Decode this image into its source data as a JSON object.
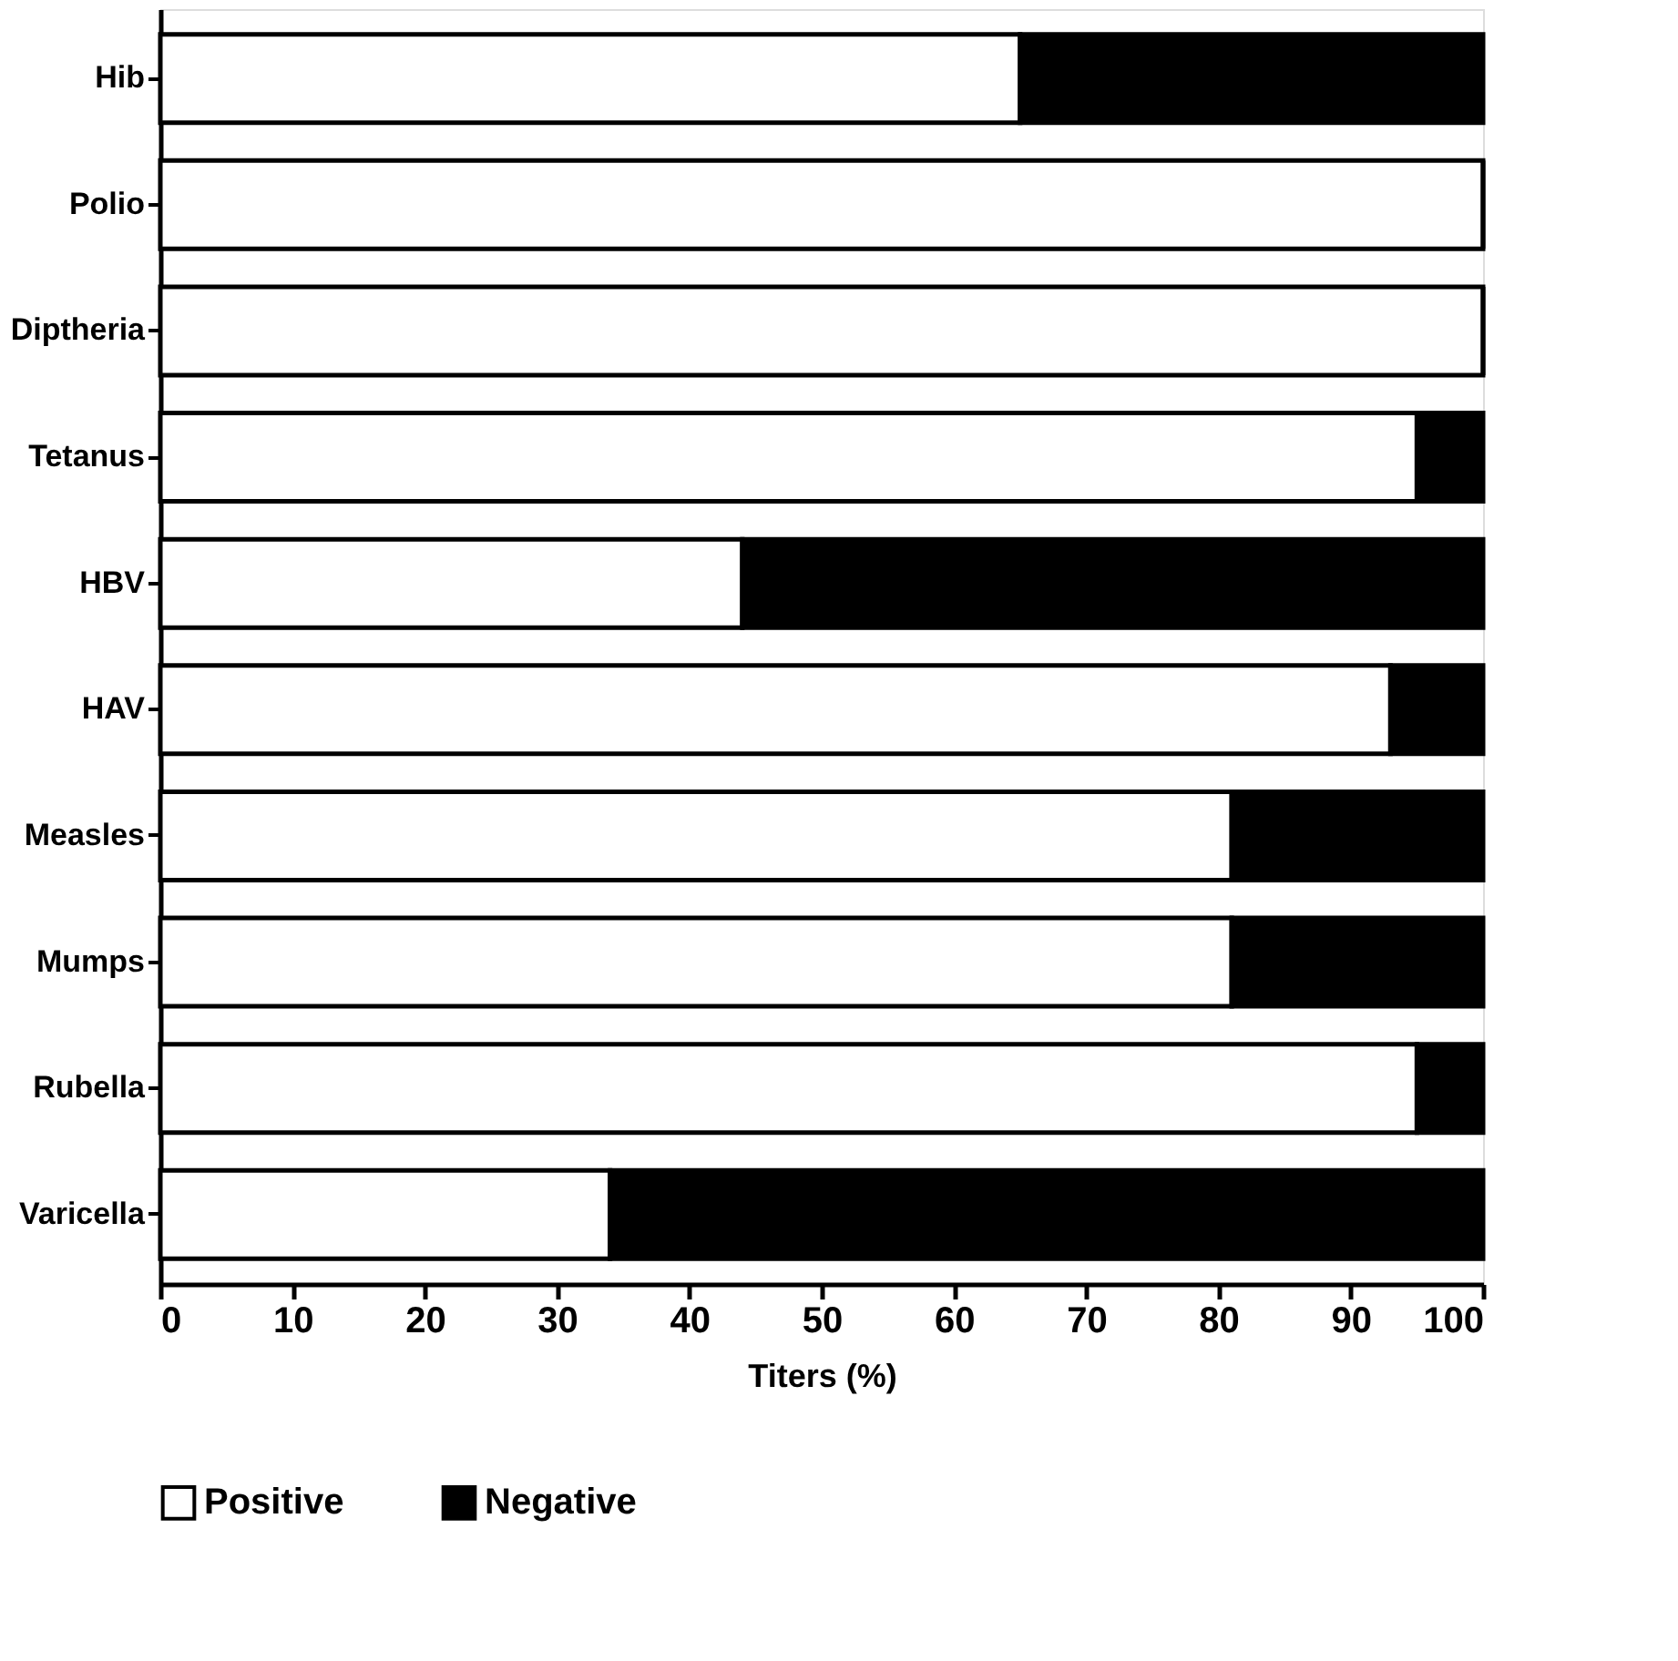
{
  "chart_data": {
    "type": "bar",
    "orientation": "horizontal",
    "stacked": true,
    "xlabel": "Titers (%)",
    "categories": [
      "Hib",
      "Polio",
      "Diptheria",
      "Tetanus",
      "HBV",
      "HAV",
      "Measles",
      "Mumps",
      "Rubella",
      "Varicella"
    ],
    "series": [
      {
        "name": "Positive",
        "color": "#ffffff",
        "values": [
          65,
          100,
          100,
          95,
          44,
          93,
          81,
          81,
          95,
          34
        ]
      },
      {
        "name": "Negative",
        "color": "#000000",
        "values": [
          35,
          0,
          0,
          5,
          56,
          7,
          19,
          19,
          5,
          66
        ]
      }
    ],
    "xlim": [
      0,
      100
    ],
    "xticks": [
      0,
      10,
      20,
      30,
      40,
      50,
      60,
      70,
      80,
      90,
      100
    ],
    "grid": false,
    "legend": "bottom"
  }
}
